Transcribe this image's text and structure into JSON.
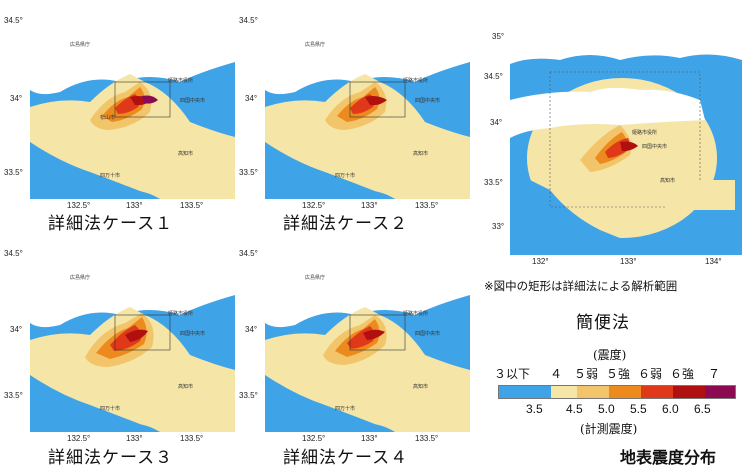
{
  "panels": [
    {
      "label": "詳細法ケース１",
      "x_ticks": [
        "132.5°",
        "133°",
        "133.5°"
      ],
      "y_ticks": [
        "34.5°",
        "34°",
        "33.5°"
      ]
    },
    {
      "label": "詳細法ケース２",
      "x_ticks": [
        "132.5°",
        "133°",
        "133.5°"
      ],
      "y_ticks": [
        "34.5°",
        "34°",
        "33.5°"
      ]
    },
    {
      "label": "詳細法ケース３",
      "x_ticks": [
        "132.5°",
        "133°",
        "133.5°"
      ],
      "y_ticks": [
        "34.5°",
        "34°",
        "33.5°"
      ]
    },
    {
      "label": "詳細法ケース４",
      "x_ticks": [
        "132.5°",
        "133°",
        "133.5°"
      ],
      "y_ticks": [
        "34.5°",
        "34°",
        "33.5°"
      ]
    }
  ],
  "simple_method": {
    "label": "簡便法",
    "note": "※図中の矩形は詳細法による解析範囲",
    "x_ticks": [
      "132°",
      "133°",
      "134°"
    ],
    "y_ticks": [
      "35°",
      "34.5°",
      "34°",
      "33.5°",
      "33°"
    ]
  },
  "legend": {
    "caption_top": "(震度)",
    "caption_bottom": "(計測震度)",
    "classes": [
      "３以下",
      "４",
      "５弱",
      "５強",
      "６弱",
      "６強",
      "７"
    ],
    "values": [
      "3.5",
      "4.5",
      "5.0",
      "5.5",
      "6.0",
      "6.5"
    ],
    "colors": [
      "#3fa3e8",
      "#f5e6a8",
      "#f3c56a",
      "#ec8a1e",
      "#e0391a",
      "#b01010",
      "#8c0a52"
    ]
  },
  "title": "地表震度分布"
}
